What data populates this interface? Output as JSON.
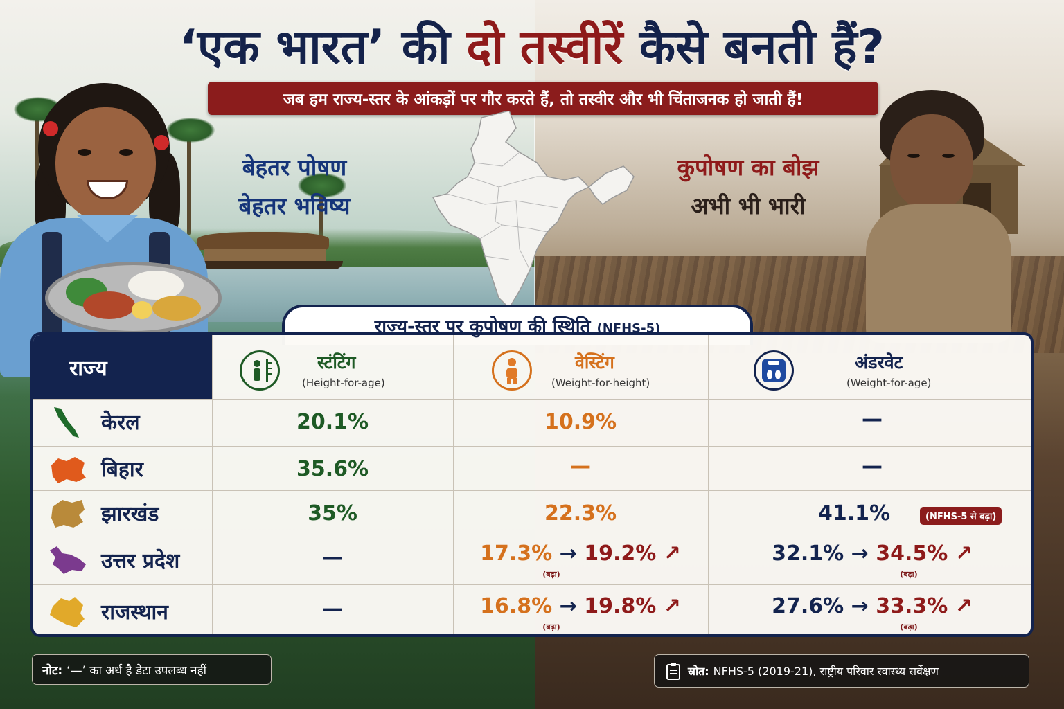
{
  "header": {
    "title_part1": "‘एक भारत’ की ",
    "title_highlight": "दो तस्वीरें",
    "title_part2": " कैसे बनती हैं?",
    "subtitle": "जब हम राज्य-स्तर के आंकड़ों पर गौर करते हैं, तो तस्वीर और भी चिंताजनक हो जाती हैं!"
  },
  "left_message": {
    "line1": "बेहतर पोषण",
    "line2": "बेहतर भविष्य"
  },
  "right_message": {
    "line1": "कुपोषण का बोझ",
    "line2": "अभी भी भारी"
  },
  "table": {
    "title": "राज्य-स्तर पर कुपोषण की स्थिति",
    "title_tag": "(NFHS-5)",
    "state_header": "राज्य",
    "columns": [
      {
        "title": "स्टंटिंग",
        "subtitle": "(Height-for-age)",
        "icon": "height-measure-icon",
        "color": "#1e5a25"
      },
      {
        "title": "वेस्टिंग",
        "subtitle": "(Weight-for-height)",
        "icon": "child-figure-icon",
        "color": "#d5711d"
      },
      {
        "title": "अंडरवेट",
        "subtitle": "(Weight-for-age)",
        "icon": "weighing-scale-icon",
        "color": "#13234e"
      }
    ],
    "rows": [
      {
        "state": "केरल",
        "color": "#1f6a2a",
        "stunting": "20.1%",
        "wasting": "10.9%",
        "underweight": "—"
      },
      {
        "state": "बिहार",
        "color": "#e05a1c",
        "stunting": "35.6%",
        "wasting": "—",
        "underweight": "—"
      },
      {
        "state": "झारखंड",
        "color": "#b98a3a",
        "stunting": "35%",
        "wasting": "22.3%",
        "underweight": "41.1%",
        "underweight_badge": "(NFHS-5 से बढ़ा)"
      },
      {
        "state": "उत्तर प्रदेश",
        "color": "#7b3a8e",
        "stunting": "—",
        "wasting_from": "17.3%",
        "wasting_to": "19.2%",
        "wasting_note": "(बढ़ा)",
        "underweight_from": "32.1%",
        "underweight_to": "34.5%",
        "underweight_note": "(बढ़ा)"
      },
      {
        "state": "राजस्थान",
        "color": "#e1a92a",
        "stunting": "—",
        "wasting_from": "16.8%",
        "wasting_to": "19.8%",
        "wasting_note": "(बढ़ा)",
        "underweight_from": "27.6%",
        "underweight_to": "33.3%",
        "underweight_note": "(बढ़ा)"
      }
    ]
  },
  "footer": {
    "note_label": "नोट:",
    "note_text": "‘—’ का अर्थ है डेटा उपलब्ध नहीं",
    "source_icon": "clipboard-icon",
    "source_label": "स्रोत:",
    "source_text": "NFHS-5 (2019-21), राष्ट्रीय परिवार स्वास्थ्य सर्वेक्षण"
  }
}
